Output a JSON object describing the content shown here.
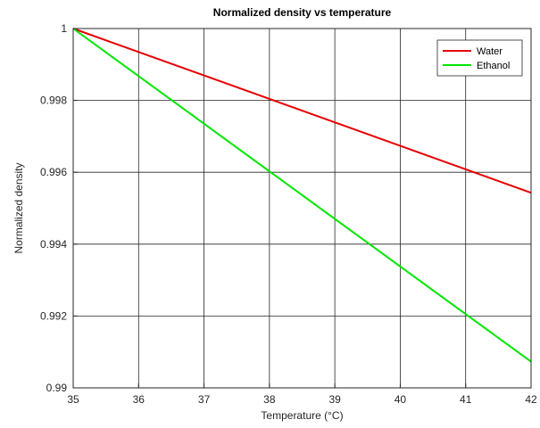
{
  "chart_data": {
    "type": "line",
    "title": "Normalized density vs temperature",
    "xlabel": "Temperature (°C)",
    "ylabel": "Normalized density",
    "xlim": [
      35,
      42
    ],
    "ylim": [
      0.99,
      1
    ],
    "xticks": [
      35,
      36,
      37,
      38,
      39,
      40,
      41,
      42
    ],
    "xtick_labels": [
      "35",
      "36",
      "37",
      "38",
      "39",
      "40",
      "41",
      "42"
    ],
    "yticks": [
      0.99,
      0.992,
      0.994,
      0.996,
      0.998,
      1
    ],
    "ytick_labels": [
      "0.99",
      "0.992",
      "0.994",
      "0.996",
      "0.998",
      "1"
    ],
    "grid": true,
    "legend_position": "top-right",
    "series": [
      {
        "name": "Water",
        "color": "#e60000",
        "x": [
          35,
          42
        ],
        "y": [
          1.0,
          0.99543
        ]
      },
      {
        "name": "Ethanol",
        "color": "#00e600",
        "x": [
          35,
          42
        ],
        "y": [
          1.0,
          0.99073
        ]
      }
    ]
  }
}
